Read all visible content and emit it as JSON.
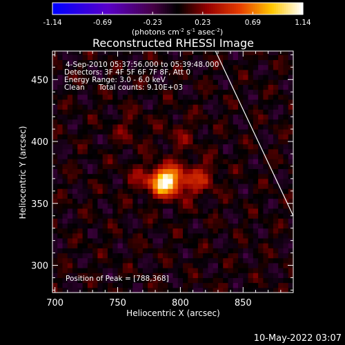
{
  "chart_data": {
    "type": "heatmap",
    "title": "Reconstructed RHESSI Image",
    "xlabel": "Heliocentric X (arcsec)",
    "ylabel": "Heliocentric Y (arcsec)",
    "xlim": [
      698,
      890
    ],
    "ylim": [
      278,
      473
    ],
    "x_ticks": [
      700,
      750,
      800,
      850
    ],
    "y_ticks": [
      300,
      350,
      400,
      450
    ],
    "colorbar": {
      "range": [
        -1.14,
        1.14
      ],
      "ticks": [
        "-1.14",
        "-0.69",
        "-0.23",
        "0.23",
        "0.69",
        "1.14"
      ],
      "unit_prefix": "(photons cm",
      "unit_exp1": "-2",
      "unit_mid": " s",
      "unit_exp2": "-1",
      "unit_suffix": " asec",
      "unit_exp3": "-2",
      "unit_close": ")"
    },
    "peak": {
      "x": 788,
      "y": 368
    },
    "limb_line": [
      [
        828,
        473
      ],
      [
        890,
        340
      ]
    ],
    "sources": [
      {
        "x": 788,
        "y": 368,
        "amp": 1.14,
        "sigma": 7.5
      },
      {
        "x": 805,
        "y": 368,
        "amp": 0.3,
        "sigma": 10
      },
      {
        "x": 770,
        "y": 370,
        "amp": 0.2,
        "sigma": 9
      },
      {
        "x": 820,
        "y": 372,
        "amp": 0.22,
        "sigma": 8
      },
      {
        "x": 760,
        "y": 410,
        "amp": 0.15,
        "sigma": 9
      },
      {
        "x": 800,
        "y": 405,
        "amp": 0.14,
        "sigma": 10
      }
    ]
  },
  "annotations": {
    "time_range": "4-Sep-2010 05:37:56.000 to 05:39:48.000",
    "detectors": "Detectors: 3F 4F 5F 6F 7F 8F, Att 0",
    "energy": "Energy Range: 3.0 - 6.0 keV",
    "method": "Clean",
    "counts": "Total counts: 9.10E+03",
    "peak_label": "Position of Peak = [788,368]"
  },
  "footer": {
    "date": "10-May-2022 03:07"
  },
  "colors": {
    "axis": "#ffffff",
    "background": "#000000"
  }
}
